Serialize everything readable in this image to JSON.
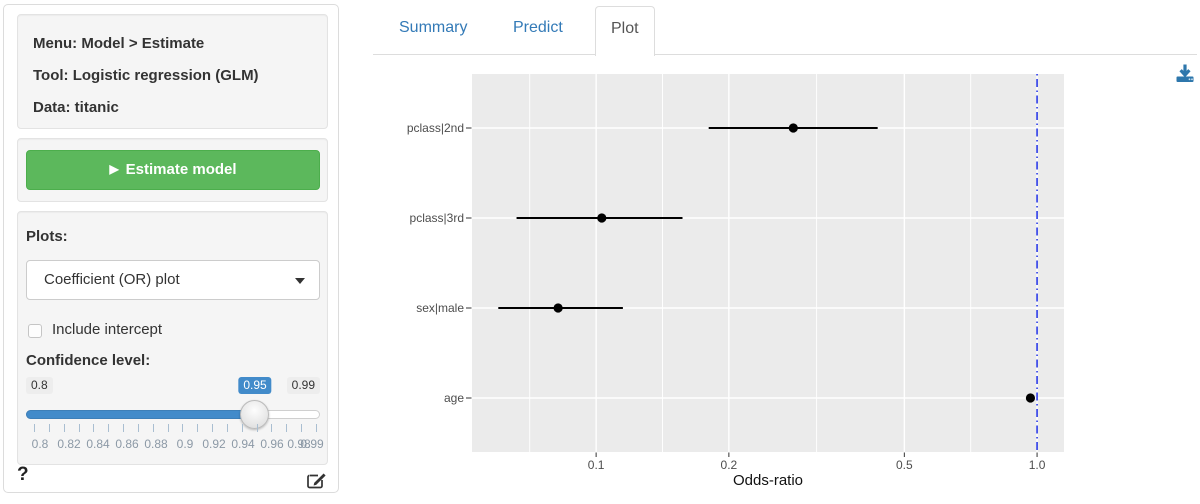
{
  "sidebar": {
    "info": {
      "line1": "Menu: Model > Estimate",
      "line2": "Tool: Logistic regression (GLM)",
      "line3": "Data: titanic"
    },
    "estimate_button": {
      "glyph": "▶",
      "label": "Estimate model",
      "color": "#5cb85c"
    },
    "plots": {
      "label": "Plots:",
      "selected": "Coefficient (OR) plot"
    },
    "include_intercept": {
      "label": "Include intercept",
      "checked": false
    },
    "confidence": {
      "label": "Confidence level:",
      "min": "0.8",
      "max": "0.99",
      "value": "0.95",
      "grid_labels": [
        "0.8",
        "0.82",
        "0.84",
        "0.86",
        "0.88",
        "0.9",
        "0.92",
        "0.94",
        "0.96",
        "0.98",
        "0.99"
      ],
      "accent": "#428bca"
    },
    "help": "?"
  },
  "tabs": [
    {
      "label": "Summary",
      "active": false
    },
    {
      "label": "Predict",
      "active": false
    },
    {
      "label": "Plot",
      "active": true
    }
  ],
  "icons": {
    "play": "play-icon",
    "caret": "caret-down-icon",
    "download": "download-icon",
    "edit": "edit-report-icon",
    "help": "help-question"
  },
  "chart_data": {
    "type": "scatter",
    "subtype": "coefficient-odds-ratio-plot",
    "title": "",
    "xlabel": "Odds-ratio",
    "ylabel": "",
    "x_scale": "log10",
    "xlim": [
      0.0523,
      1.151
    ],
    "x_ticks": [
      0.1,
      0.2,
      0.5,
      1.0
    ],
    "x_tick_labels": [
      "0.1",
      "0.2",
      "0.5",
      "1.0"
    ],
    "x_minor_gridlines": [
      0.0707,
      0.1414,
      0.3162,
      0.7071
    ],
    "categories": [
      "pclass|2nd",
      "pclass|3rd",
      "sex|male",
      "age"
    ],
    "points": [
      {
        "label": "pclass|2nd",
        "odds_ratio": 0.28,
        "ci_low": 0.18,
        "ci_high": 0.435
      },
      {
        "label": "pclass|3rd",
        "odds_ratio": 0.103,
        "ci_low": 0.066,
        "ci_high": 0.157
      },
      {
        "label": "sex|male",
        "odds_ratio": 0.082,
        "ci_low": 0.06,
        "ci_high": 0.115
      },
      {
        "label": "age",
        "odds_ratio": 0.966,
        "ci_low": 0.956,
        "ci_high": 0.976
      }
    ],
    "reference_line": {
      "x": 1.0,
      "linetype": "dotdash",
      "color": "#2B3BE8"
    },
    "panel_bg": "#EBEBEB",
    "grid_color": "#FFFFFF",
    "point_color": "#000000",
    "grid": true,
    "legend": "none"
  }
}
